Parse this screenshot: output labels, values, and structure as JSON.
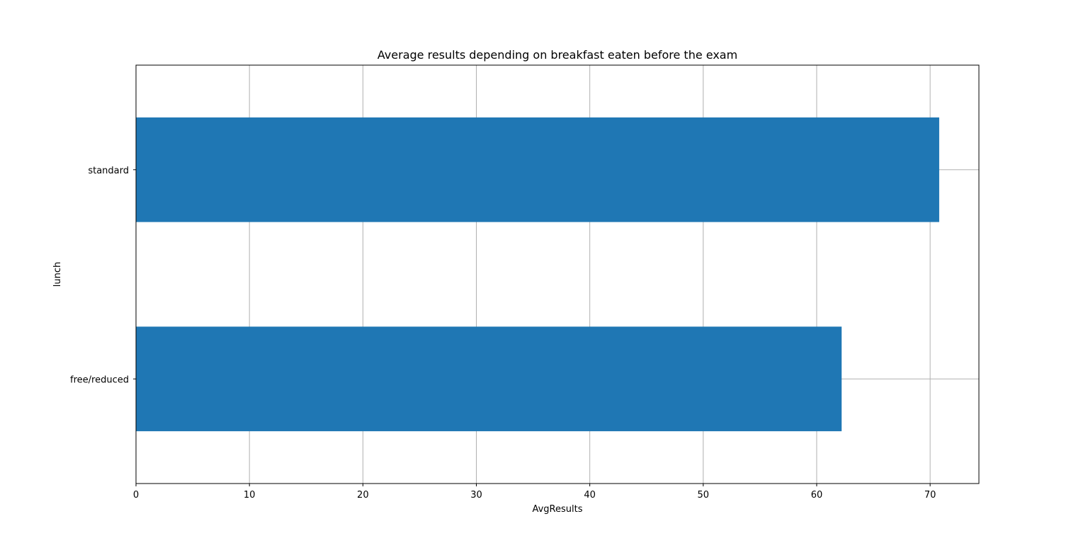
{
  "chart_data": {
    "type": "bar",
    "orientation": "horizontal",
    "title": "Average results depending on breakfast eaten before the exam",
    "xlabel": "AvgResults",
    "ylabel": "lunch",
    "categories": [
      "free/reduced",
      "standard"
    ],
    "values": [
      62.2,
      70.8
    ],
    "xlim": [
      0,
      74.3
    ],
    "xticks": [
      0,
      10,
      20,
      30,
      40,
      50,
      60,
      70
    ],
    "grid": true,
    "bar_color": "#1f77b4"
  }
}
